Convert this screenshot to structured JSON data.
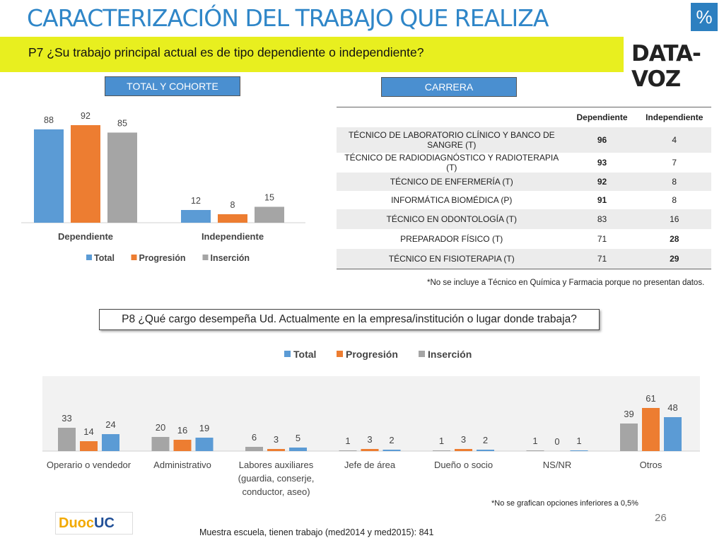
{
  "header": {
    "title": "CARACTERIZACIÓN DEL TRABAJO QUE REALIZA",
    "percent_badge": "%",
    "question": "P7 ¿Su trabajo principal actual es de tipo dependiente o independiente?",
    "logo": "DATA-VOZ"
  },
  "tags": {
    "total": "TOTAL Y COHORTE",
    "carrera": "CARRERA"
  },
  "colors": {
    "Total": "#5b9bd5",
    "Progresión": "#ed7d31",
    "Inserción": "#a5a5a5",
    "accent": "#e8ef1f",
    "title": "#2f86c8"
  },
  "chart_data": [
    {
      "type": "bar",
      "categories": [
        "Dependiente",
        "Independiente"
      ],
      "series": [
        {
          "name": "Total",
          "values": [
            88,
            12
          ]
        },
        {
          "name": "Progresión",
          "values": [
            92,
            8
          ]
        },
        {
          "name": "Inserción",
          "values": [
            85,
            15
          ]
        }
      ],
      "ylim": [
        0,
        100
      ],
      "grid": false,
      "legend": "bottom"
    },
    {
      "type": "bar",
      "categories": [
        "Operario o vendedor",
        "Administrativo",
        "Labores auxiliares (guardia, conserje, conductor, aseo)",
        "Jefe de área",
        "Dueño o socio",
        "NS/NR",
        "Otros"
      ],
      "series": [
        {
          "name": "Inserción",
          "values": [
            33,
            20,
            6,
            1,
            1,
            1,
            39
          ]
        },
        {
          "name": "Progresión",
          "values": [
            14,
            16,
            3,
            3,
            3,
            0,
            61
          ]
        },
        {
          "name": "Total",
          "values": [
            24,
            19,
            5,
            2,
            2,
            1,
            48
          ]
        }
      ],
      "ylim": [
        0,
        100
      ],
      "grid": false,
      "legend": "top"
    }
  ],
  "careers": {
    "headers": [
      "Dependiente",
      "Independiente"
    ],
    "rows": [
      {
        "name": "TÉCNICO DE LABORATORIO CLÍNICO Y BANCO DE SANGRE (T)",
        "dep": "96",
        "ind": "4"
      },
      {
        "name": "TÉCNICO DE RADIODIAGNÓSTICO Y RADIOTERAPIA (T)",
        "dep": "93",
        "ind": "7"
      },
      {
        "name": "TÉCNICO DE ENFERMERÍA (T)",
        "dep": "92",
        "ind": "8"
      },
      {
        "name": "INFORMÁTICA BIOMÉDICA (P)",
        "dep": "91",
        "ind": "8"
      },
      {
        "name": "TÉCNICO EN ODONTOLOGÍA (T)",
        "dep": "83",
        "ind": "16"
      },
      {
        "name": "PREPARADOR FÍSICO (T)",
        "dep": "71",
        "ind": "28"
      },
      {
        "name": "TÉCNICO EN FISIOTERAPIA (T)",
        "dep": "71",
        "ind": "29"
      }
    ],
    "note": "*No se incluye a  Técnico en Química y Farmacia porque no presentan datos."
  },
  "p8": {
    "question": "P8 ¿Qué cargo desempeña Ud. Actualmente en la empresa/institución o lugar donde trabaja?",
    "note": "*No se grafican opciones inferiores a 0,5%"
  },
  "footer": {
    "sample": "Muestra escuela, tienen trabajo (med2014 y med2015): 841",
    "page": "26",
    "brand_a": "Duoc",
    "brand_b": "UC"
  }
}
